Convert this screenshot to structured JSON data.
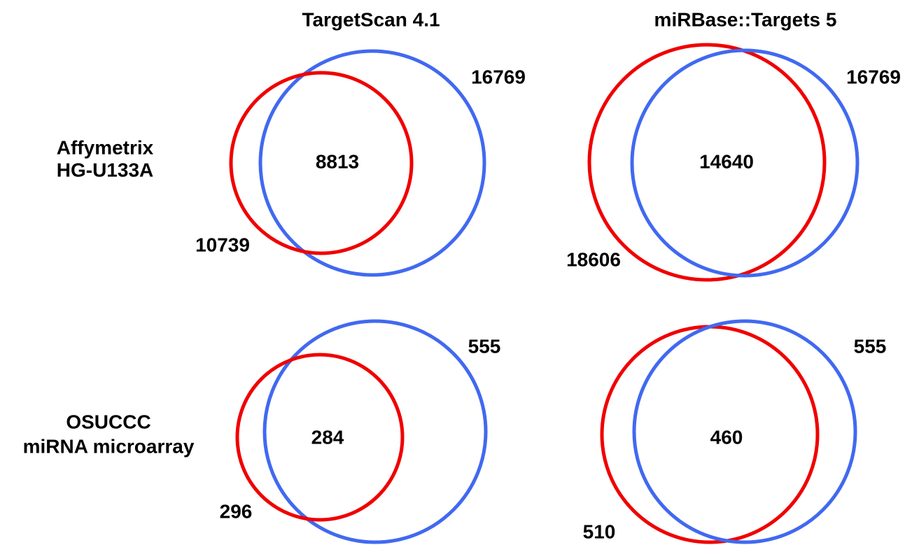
{
  "columns": [
    "TargetScan 4.1",
    "miRBase::Targets 5"
  ],
  "rows": [
    [
      "Affymetrix",
      "HG-U133A"
    ],
    [
      "OSUCCC",
      "miRNA microarray"
    ]
  ],
  "panels": [
    {
      "blue_count": 16769,
      "overlap": 8813,
      "red_count": 10739
    },
    {
      "blue_count": 16769,
      "overlap": 14640,
      "red_count": 18606
    },
    {
      "blue_count": 555,
      "overlap": 284,
      "red_count": 296
    },
    {
      "blue_count": 555,
      "overlap": 460,
      "red_count": 510
    }
  ]
}
